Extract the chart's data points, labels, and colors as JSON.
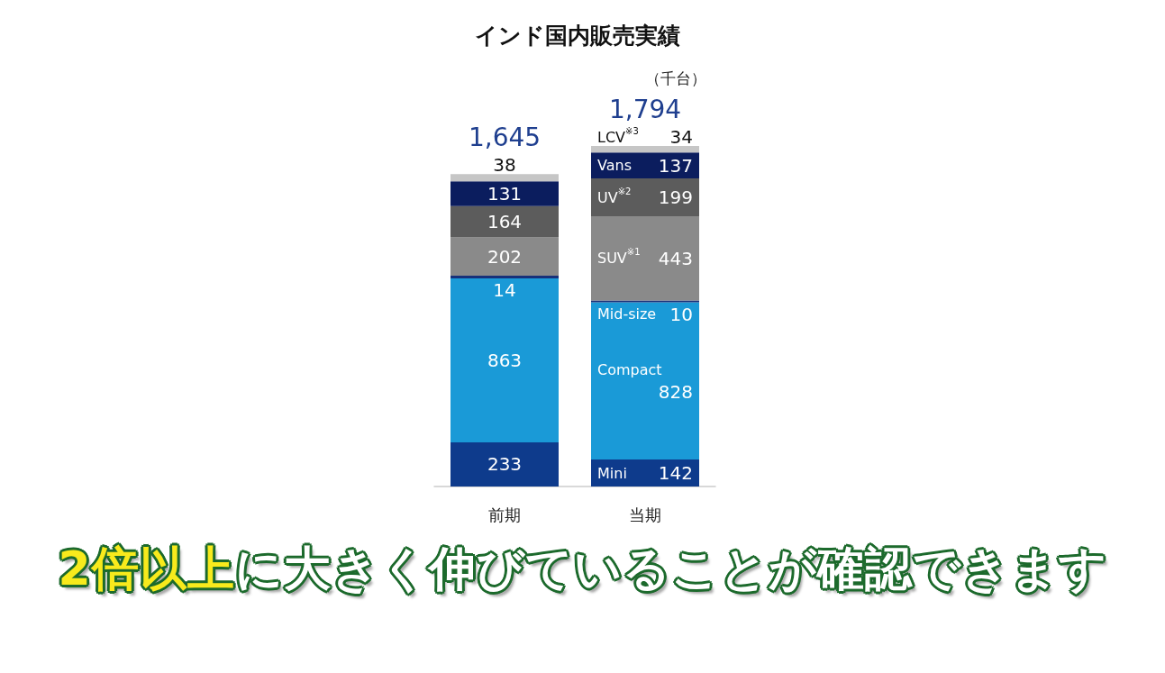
{
  "chart_data": {
    "type": "bar",
    "title": "インド国内販売実績",
    "categories": [
      "前期",
      "当期"
    ],
    "stacked": true,
    "data_labels": true,
    "legend": false,
    "grid": false,
    "totals": [
      "1,645",
      "1,794"
    ],
    "annotations": [
      "（千台）",
      "2倍以上",
      "に大きく伸びていることが確認できます"
    ],
    "series": [
      {
        "name": "Mini",
        "color": "#0e3b8c",
        "values": [
          233,
          142
        ]
      },
      {
        "name": "Compact",
        "color": "#1a9ad7",
        "values": [
          863,
          828
        ]
      },
      {
        "name": "Mid-size",
        "color": "#17307a",
        "values": [
          14,
          10
        ]
      },
      {
        "name": "SUV$^{※1}$",
        "color": "#8a8a8a",
        "values": [
          202,
          443
        ]
      },
      {
        "name": "UV$^{※2}$",
        "color": "#5c5c5c",
        "values": [
          164,
          199
        ]
      },
      {
        "name": "Vans",
        "color": "#0b1d5e",
        "values": [
          131,
          137
        ]
      },
      {
        "name": "LCV$^{※3}$",
        "color": "#c6c6c6",
        "values": [
          38,
          34
        ]
      }
    ]
  }
}
